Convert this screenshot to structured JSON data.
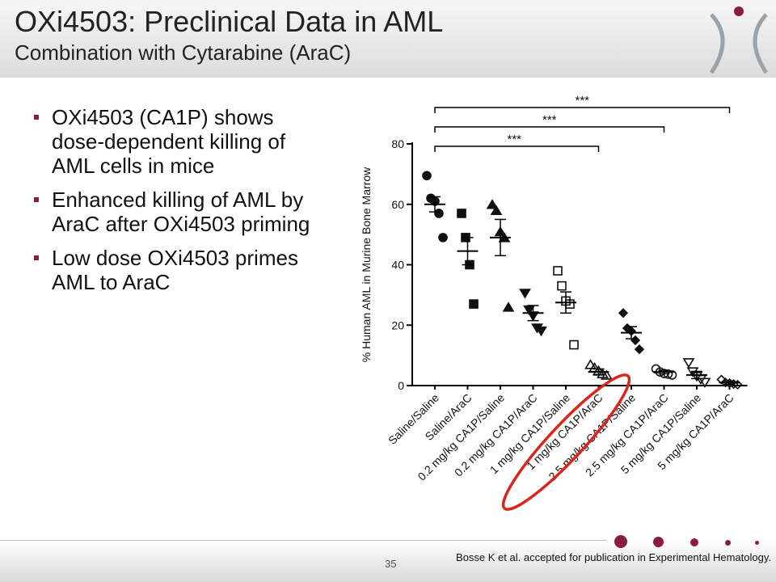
{
  "header": {
    "title": "OXi4503: Preclinical Data in AML",
    "subtitle": "Combination with Cytarabine (AraC)"
  },
  "bullets": [
    "OXi4503 (CA1P) shows dose-dependent killing of AML cells in mice",
    "Enhanced killing of AML by AraC after OXi4503 priming",
    "Low dose OXi4503 primes AML to AraC"
  ],
  "footer": {
    "page_number": "35",
    "citation": "Bosse K et al. accepted for publication in Experimental Hematology."
  },
  "colors": {
    "accent": "#8a1d3a",
    "highlight_ellipse": "#d9261c",
    "logo": "#9aa3ab"
  },
  "chart_data": {
    "type": "scatter",
    "ylabel": "% Human AML in Murine Bone Marrow",
    "ylim": [
      0,
      80
    ],
    "yticks": [
      "0",
      "20",
      "40",
      "60",
      "80"
    ],
    "categories": [
      "Saline/Saline",
      "Saline/AraC",
      "0.2 mg/kg CA1P/Saline",
      "0.2 mg/kg CA1P/AraC",
      "1 mg/kg CA1P/Saline",
      "1 mg/kg CA1P/AraC",
      "2.5 mg/kg CA1P/Saline",
      "2.5 mg/kg CA1P/AraC",
      "5 mg/kg CA1P/Saline",
      "5 mg/kg CA1P/AraC"
    ],
    "groups": [
      {
        "marker": "circle-filled",
        "mean": 60,
        "sem": 2.5,
        "points": [
          69.5,
          62,
          61,
          57,
          49
        ]
      },
      {
        "marker": "square-filled",
        "mean": 44.5,
        "sem": 4.5,
        "points": [
          57,
          49,
          40,
          27
        ]
      },
      {
        "marker": "triangle-filled",
        "mean": 49,
        "sem": 6,
        "points": [
          60,
          58,
          51,
          49,
          26
        ]
      },
      {
        "marker": "triangle-down-filled",
        "mean": 24,
        "sem": 2.5,
        "points": [
          30.5,
          25,
          23,
          19,
          18
        ]
      },
      {
        "marker": "square-open",
        "mean": 27.5,
        "sem": 3.5,
        "points": [
          38,
          33,
          28,
          27,
          13.5
        ]
      },
      {
        "marker": "triangle-open",
        "mean": 4.5,
        "sem": 1,
        "points": [
          7,
          6,
          5,
          4,
          3.5
        ]
      },
      {
        "marker": "diamond-filled",
        "mean": 17.5,
        "sem": 2,
        "points": [
          24,
          19,
          18,
          15,
          12
        ]
      },
      {
        "marker": "circle-open",
        "mean": 4.5,
        "sem": 0.6,
        "points": [
          5.5,
          4.5,
          4,
          3.8,
          3.5
        ]
      },
      {
        "marker": "triangle-down-open",
        "mean": 3.5,
        "sem": 1.2,
        "points": [
          7.5,
          4.5,
          3,
          2,
          1
        ]
      },
      {
        "marker": "diamond-open",
        "mean": 1,
        "sem": 0.5,
        "points": [
          2,
          1,
          0.8,
          0.5,
          0.3
        ]
      }
    ],
    "significance": [
      {
        "from": 0,
        "to": 5,
        "label": "***"
      },
      {
        "from": 0,
        "to": 7,
        "label": "***"
      },
      {
        "from": 0,
        "to": 9,
        "label": "***"
      }
    ],
    "highlight": "1 mg/kg CA1P/AraC"
  }
}
